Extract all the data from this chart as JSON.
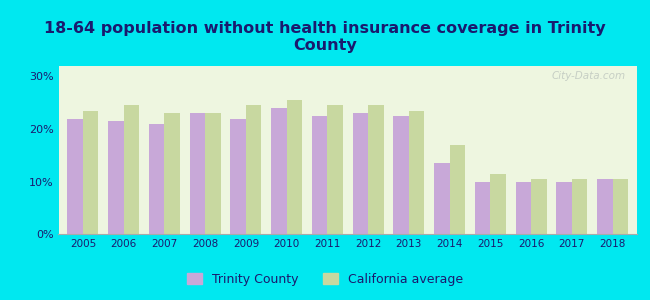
{
  "title": "18-64 population without health insurance coverage in Trinity\nCounty",
  "years": [
    2005,
    2006,
    2007,
    2008,
    2009,
    2010,
    2011,
    2012,
    2013,
    2014,
    2015,
    2016,
    2017,
    2018
  ],
  "trinity_county": [
    22,
    21.5,
    21,
    23,
    22,
    24,
    22.5,
    23,
    22.5,
    13.5,
    10,
    10,
    10,
    10.5
  ],
  "california_avg": [
    23.5,
    24.5,
    23,
    23,
    24.5,
    25.5,
    24.5,
    24.5,
    23.5,
    17,
    11.5,
    10.5,
    10.5,
    10.5
  ],
  "bar_color_trinity": "#c8a8d8",
  "bar_color_california": "#c8d8a0",
  "background_outer": "#00e8f0",
  "background_inner": "#eef6e0",
  "title_fontsize": 11.5,
  "title_color": "#1a1a6e",
  "legend_color": "#1a1a6e",
  "ylim": [
    0,
    32
  ],
  "yticks": [
    0,
    10,
    20,
    30
  ],
  "ytick_labels": [
    "0%",
    "10%",
    "20%",
    "30%"
  ],
  "watermark": "City-Data.com",
  "legend_trinity": "Trinity County",
  "legend_california": "California average"
}
